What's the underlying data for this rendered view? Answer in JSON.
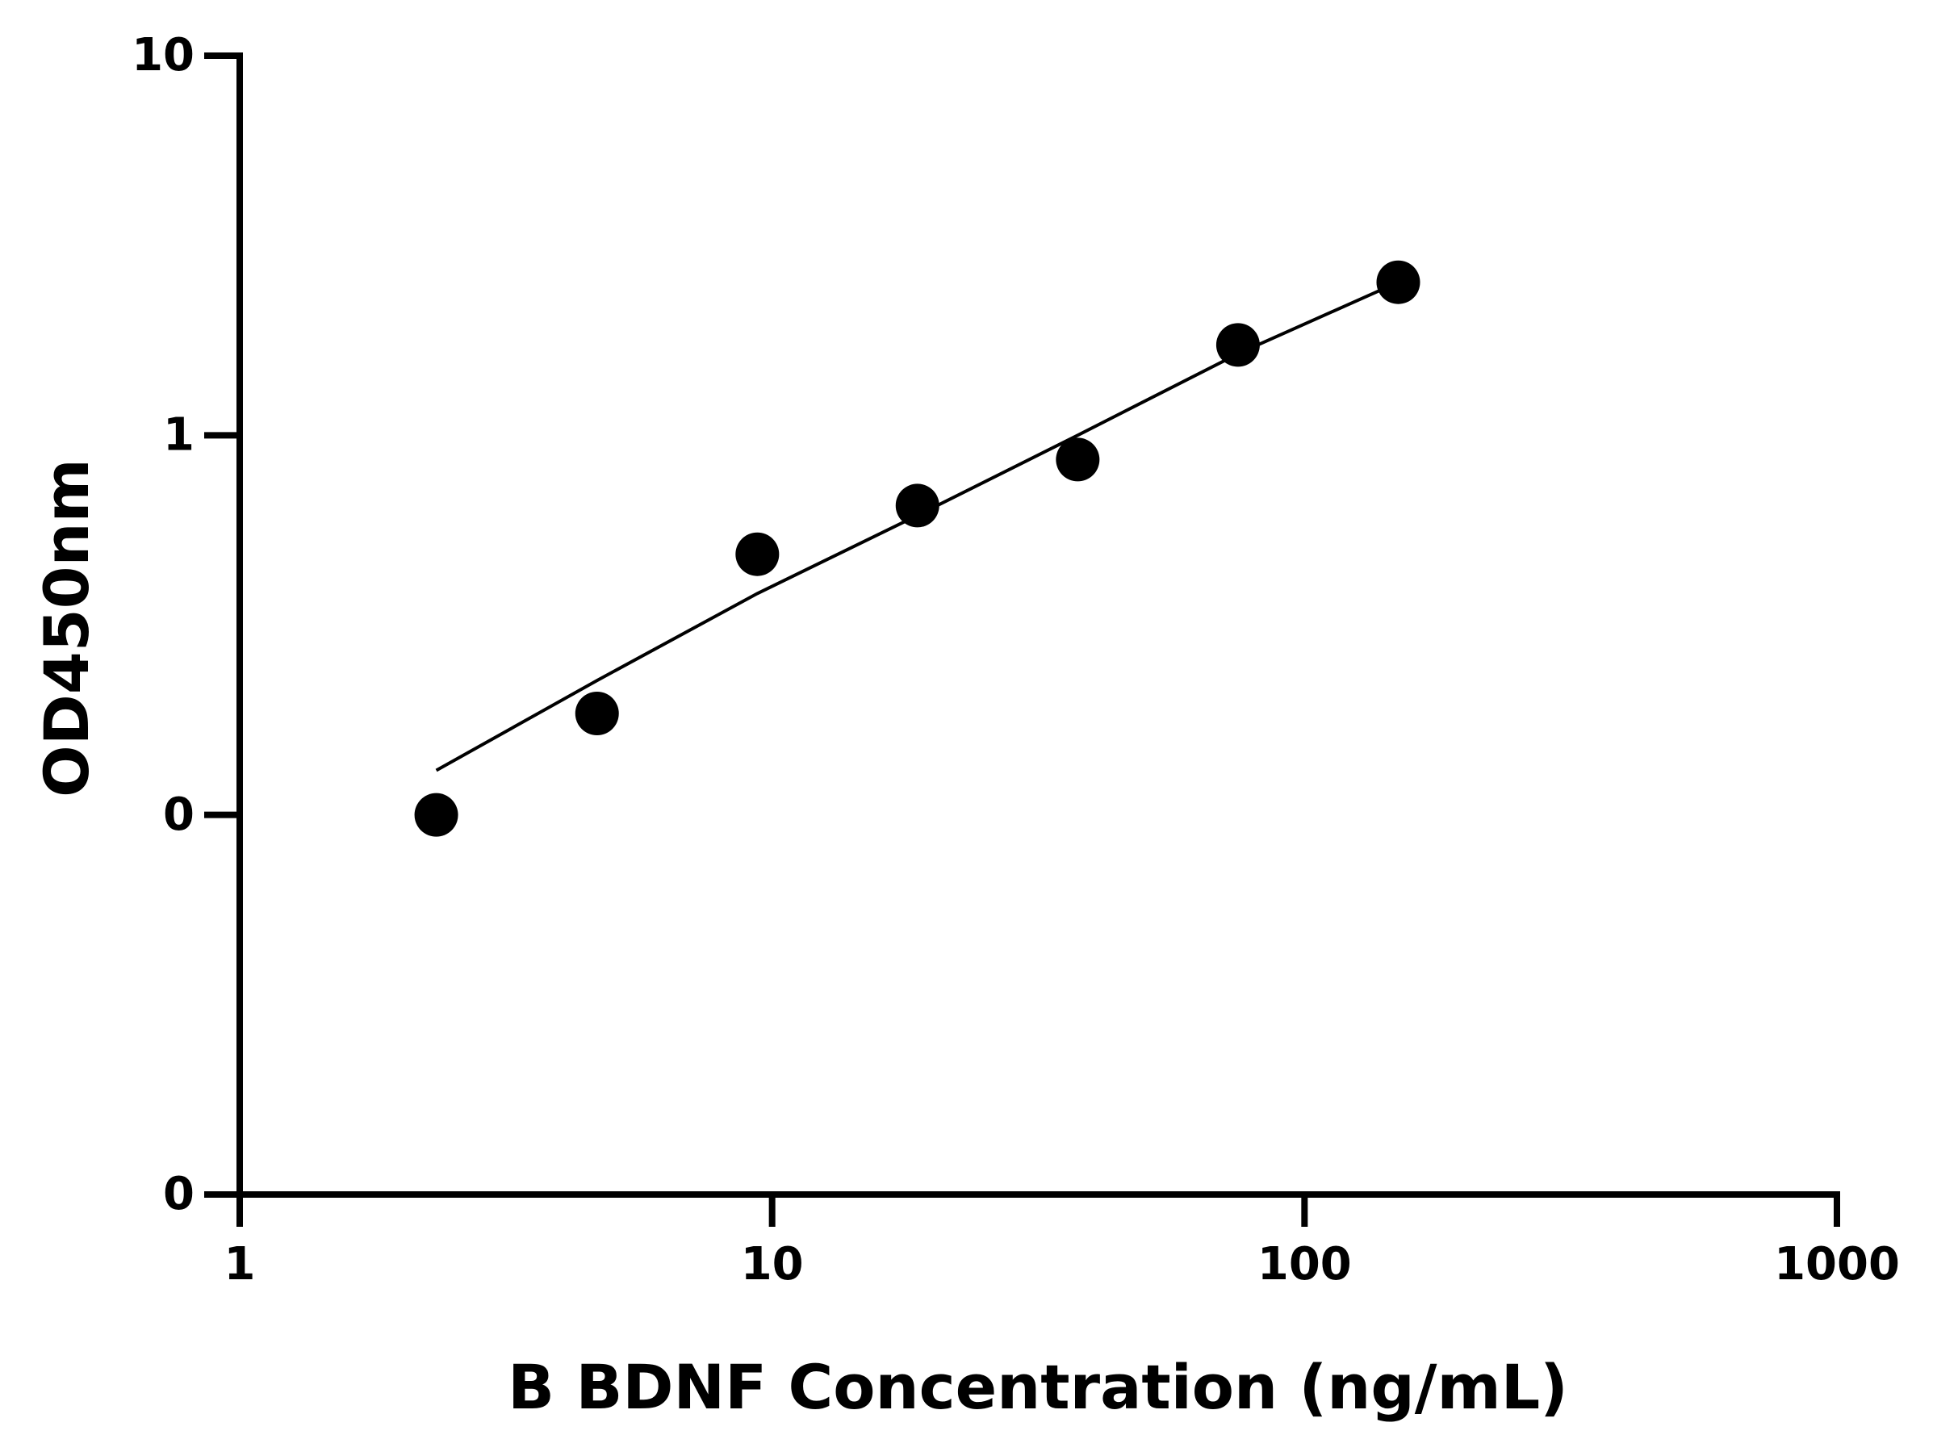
{
  "chart_data": {
    "type": "scatter",
    "x_label": "B BDNF Concentration (ng/mL)",
    "y_label": "OD450nm",
    "x": [
      2.34,
      4.69,
      9.38,
      18.75,
      37.5,
      75,
      150
    ],
    "series": [
      {
        "type": "scatter",
        "color": "#000000",
        "values": [
          0.1,
          0.185,
          0.486,
          0.653,
          0.863,
          1.73,
          2.53
        ]
      },
      {
        "type": "line",
        "color": "#000000",
        "values": [
          0.131,
          0.226,
          0.383,
          0.615,
          1.0,
          1.64,
          2.53
        ]
      }
    ],
    "x_log": true,
    "y_log": true,
    "xlim": [
      1,
      1000
    ],
    "ylim": [
      0.01,
      10
    ],
    "xticks": [
      1,
      10,
      100,
      1000
    ],
    "yticks": [
      {
        "value": 0.01,
        "label": "0"
      },
      {
        "value": 0.1,
        "label": "0"
      },
      1,
      10
    ]
  }
}
